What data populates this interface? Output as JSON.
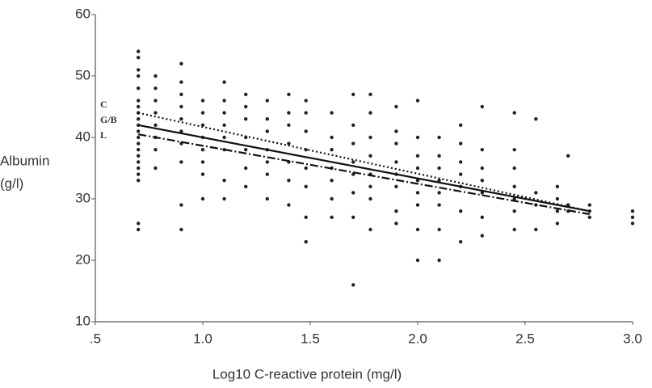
{
  "chart_data": {
    "type": "scatter",
    "xlabel": "Log10 C-reactive protein (mg/l)",
    "ylabel": [
      "Albumin",
      "(g/l)"
    ],
    "xlim": [
      0.5,
      3.0
    ],
    "ylim": [
      10,
      60
    ],
    "xticks": [
      {
        "value": 0.5,
        "label": ".5"
      },
      {
        "value": 1.0,
        "label": "1.0"
      },
      {
        "value": 1.5,
        "label": "1.5"
      },
      {
        "value": 2.0,
        "label": "2.0"
      },
      {
        "value": 2.5,
        "label": "2.5"
      },
      {
        "value": 3.0,
        "label": "3.0"
      }
    ],
    "yticks": [
      10,
      20,
      30,
      40,
      50,
      60
    ],
    "color": "#222222",
    "points": {
      "x": [
        0.7,
        0.7,
        0.7,
        0.7,
        0.7,
        0.7,
        0.7,
        0.7,
        0.7,
        0.7,
        0.7,
        0.7,
        0.7,
        0.7,
        0.7,
        0.7,
        0.7,
        0.7,
        0.7,
        0.7,
        0.7,
        0.78,
        0.78,
        0.78,
        0.78,
        0.78,
        0.78,
        0.78,
        0.78,
        0.9,
        0.9,
        0.9,
        0.9,
        0.9,
        0.9,
        0.9,
        0.9,
        0.9,
        0.9,
        1.0,
        1.0,
        1.0,
        1.0,
        1.0,
        1.0,
        1.0,
        1.0,
        1.1,
        1.1,
        1.1,
        1.1,
        1.1,
        1.1,
        1.1,
        1.1,
        1.2,
        1.2,
        1.2,
        1.2,
        1.2,
        1.2,
        1.2,
        1.3,
        1.3,
        1.3,
        1.3,
        1.3,
        1.3,
        1.3,
        1.4,
        1.4,
        1.4,
        1.4,
        1.4,
        1.4,
        1.4,
        1.48,
        1.48,
        1.48,
        1.48,
        1.48,
        1.48,
        1.48,
        1.48,
        1.6,
        1.6,
        1.6,
        1.6,
        1.6,
        1.6,
        1.6,
        1.7,
        1.7,
        1.7,
        1.7,
        1.7,
        1.7,
        1.7,
        1.7,
        1.78,
        1.78,
        1.78,
        1.78,
        1.78,
        1.78,
        1.78,
        1.78,
        1.9,
        1.9,
        1.9,
        1.9,
        1.9,
        1.9,
        1.9,
        1.9,
        2.0,
        2.0,
        2.0,
        2.0,
        2.0,
        2.0,
        2.0,
        2.0,
        2.0,
        2.1,
        2.1,
        2.1,
        2.1,
        2.1,
        2.1,
        2.1,
        2.1,
        2.2,
        2.2,
        2.2,
        2.2,
        2.2,
        2.2,
        2.2,
        2.3,
        2.3,
        2.3,
        2.3,
        2.3,
        2.3,
        2.3,
        2.45,
        2.45,
        2.45,
        2.45,
        2.45,
        2.45,
        2.45,
        2.55,
        2.55,
        2.55,
        2.55,
        2.65,
        2.65,
        2.65,
        2.65,
        2.7,
        2.7,
        2.7,
        2.8,
        2.8,
        2.8,
        3.0,
        3.0,
        3.0
      ],
      "values": [
        54,
        53,
        51,
        50,
        48,
        46,
        45,
        44,
        43,
        42,
        41,
        40,
        39,
        38,
        37,
        36,
        35,
        34,
        33,
        26,
        25,
        50,
        48,
        46,
        44,
        42,
        40,
        38,
        35,
        52,
        49,
        47,
        45,
        43,
        41,
        39,
        36,
        29,
        25,
        46,
        44,
        42,
        40,
        38,
        36,
        34,
        30,
        49,
        46,
        44,
        42,
        40,
        38,
        33,
        30,
        47,
        45,
        43,
        40,
        38,
        35,
        32,
        46,
        43,
        41,
        38,
        36,
        34,
        30,
        47,
        44,
        42,
        39,
        36,
        33,
        29,
        46,
        44,
        41,
        38,
        35,
        32,
        27,
        23,
        44,
        40,
        38,
        35,
        33,
        30,
        27,
        47,
        42,
        39,
        36,
        34,
        31,
        27,
        16,
        47,
        44,
        40,
        37,
        34,
        32,
        30,
        25,
        45,
        41,
        39,
        36,
        34,
        32,
        28,
        26,
        46,
        40,
        37,
        35,
        33,
        31,
        29,
        25,
        20,
        40,
        37,
        35,
        33,
        31,
        29,
        25,
        20,
        42,
        39,
        36,
        34,
        32,
        28,
        23,
        45,
        38,
        35,
        33,
        31,
        27,
        24,
        44,
        38,
        35,
        32,
        30,
        28,
        25,
        43,
        31,
        29,
        25,
        32,
        30,
        28,
        26,
        37,
        29,
        28,
        29,
        28,
        27,
        28,
        27,
        26
      ]
    },
    "series": [
      {
        "name": "C",
        "dash": "dotted",
        "x": [
          0.7,
          2.8
        ],
        "values": [
          44,
          28
        ]
      },
      {
        "name": "G/B",
        "dash": "solid",
        "x": [
          0.7,
          2.8
        ],
        "values": [
          42,
          28
        ]
      },
      {
        "name": "L",
        "dash": "dash-dot",
        "x": [
          0.7,
          2.8
        ],
        "values": [
          40.5,
          27.5
        ]
      }
    ]
  }
}
